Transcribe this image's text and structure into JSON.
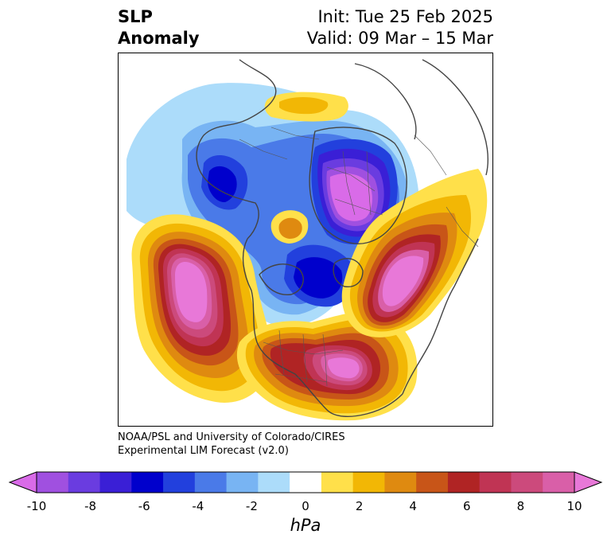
{
  "title": {
    "left_line1": "SLP",
    "left_line2": "Anomaly",
    "right_line1": "Init: Tue 25 Feb 2025",
    "right_line2": "Valid: 09 Mar – 15 Mar"
  },
  "credit": {
    "line1": "NOAA/PSL and University of Colorado/CIRES",
    "line2": "Experimental LIM Forecast (v2.0)"
  },
  "colorbar": {
    "unit_label": "hPa",
    "ticks": [
      "-10",
      "-8",
      "-6",
      "-4",
      "-2",
      "0",
      "2",
      "4",
      "6",
      "8",
      "10"
    ],
    "levels": [
      {
        "range": "< -10",
        "color": "#d96be8"
      },
      {
        "range": "-10 to -9",
        "color": "#a050e0"
      },
      {
        "range": "-9 to -8",
        "color": "#6a3ce0"
      },
      {
        "range": "-8 to -7",
        "color": "#3a1fd6"
      },
      {
        "range": "-7 to -6",
        "color": "#0000cc"
      },
      {
        "range": "-6 to -5",
        "color": "#2240dd"
      },
      {
        "range": "-5 to -4",
        "color": "#4a7ae8"
      },
      {
        "range": "-4 to -3",
        "color": "#78b4f3"
      },
      {
        "range": "-3 to -2",
        "color": "#acdcfa"
      },
      {
        "range": "-2 to 2",
        "color": "#ffffff"
      },
      {
        "range": "2 to 3",
        "color": "#ffe04a"
      },
      {
        "range": "3 to 4",
        "color": "#f2b705"
      },
      {
        "range": "4 to 5",
        "color": "#df8a10"
      },
      {
        "range": "5 to 6",
        "color": "#c85518"
      },
      {
        "range": "6 to 7",
        "color": "#b02424"
      },
      {
        "range": "7 to 8",
        "color": "#c03454"
      },
      {
        "range": "8 to 9",
        "color": "#cc4a7c"
      },
      {
        "range": "9 to 10",
        "color": "#d95fa8"
      },
      {
        "range": "> 10",
        "color": "#e878d8"
      }
    ]
  },
  "map": {
    "projection": "north-polar-stereographic",
    "anomaly_features": [
      {
        "name": "positive anomaly over North Pacific",
        "peak": "> 10"
      },
      {
        "name": "positive anomaly over eastern North America",
        "peak": "> 10"
      },
      {
        "name": "positive anomaly over North Atlantic",
        "peak": "> 10"
      },
      {
        "name": "negative anomaly over Siberia / Arctic Russia",
        "peak": "< -10"
      },
      {
        "name": "negative anomaly over Canadian Arctic",
        "peak": "-7"
      },
      {
        "name": "negative anomaly over Sea of Okhotsk",
        "peak": "-7"
      },
      {
        "name": "positive anomaly over central Europe",
        "peak": "3"
      }
    ]
  }
}
